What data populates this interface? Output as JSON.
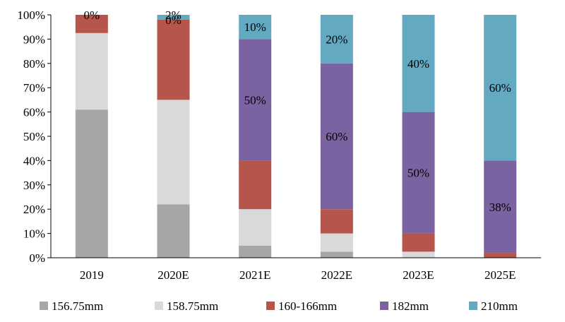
{
  "chart_data": {
    "type": "bar",
    "stacked": true,
    "percent": true,
    "categories": [
      "2019",
      "2020E",
      "2021E",
      "2022E",
      "2023E",
      "2025E"
    ],
    "ylim": [
      0,
      100
    ],
    "yticks": [
      "0%",
      "10%",
      "20%",
      "30%",
      "40%",
      "50%",
      "60%",
      "70%",
      "80%",
      "90%",
      "100%"
    ],
    "grid": false,
    "legend_position": "bottom",
    "series": [
      {
        "name": "156.75mm",
        "color": "#a6a6a6",
        "values": [
          61,
          22,
          5,
          2.5,
          0,
          0
        ]
      },
      {
        "name": "158.75mm",
        "color": "#d9d9d9",
        "values": [
          31.5,
          43,
          15,
          7.5,
          2.5,
          0
        ]
      },
      {
        "name": "160-166mm",
        "color": "#b5554c",
        "values": [
          7.5,
          33,
          20,
          10,
          7.5,
          2
        ]
      },
      {
        "name": "182mm",
        "color": "#7b62a0",
        "values": [
          0,
          0,
          50,
          60,
          50,
          38
        ]
      },
      {
        "name": "210mm",
        "color": "#63a9c2",
        "values": [
          0,
          2,
          10,
          20,
          40,
          60
        ]
      }
    ],
    "data_labels": [
      {
        "category": "2019",
        "series": "210mm",
        "text": "0%"
      },
      {
        "category": "2020E",
        "series": "182mm",
        "text": "0%"
      },
      {
        "category": "2020E",
        "series": "210mm",
        "text": "2%"
      },
      {
        "category": "2021E",
        "series": "210mm",
        "text": "10%"
      },
      {
        "category": "2021E",
        "series": "182mm",
        "text": "50%"
      },
      {
        "category": "2022E",
        "series": "210mm",
        "text": "20%"
      },
      {
        "category": "2022E",
        "series": "182mm",
        "text": "60%"
      },
      {
        "category": "2023E",
        "series": "210mm",
        "text": "40%"
      },
      {
        "category": "2023E",
        "series": "182mm",
        "text": "50%"
      },
      {
        "category": "2025E",
        "series": "210mm",
        "text": "60%"
      },
      {
        "category": "2025E",
        "series": "182mm",
        "text": "38%"
      }
    ]
  }
}
